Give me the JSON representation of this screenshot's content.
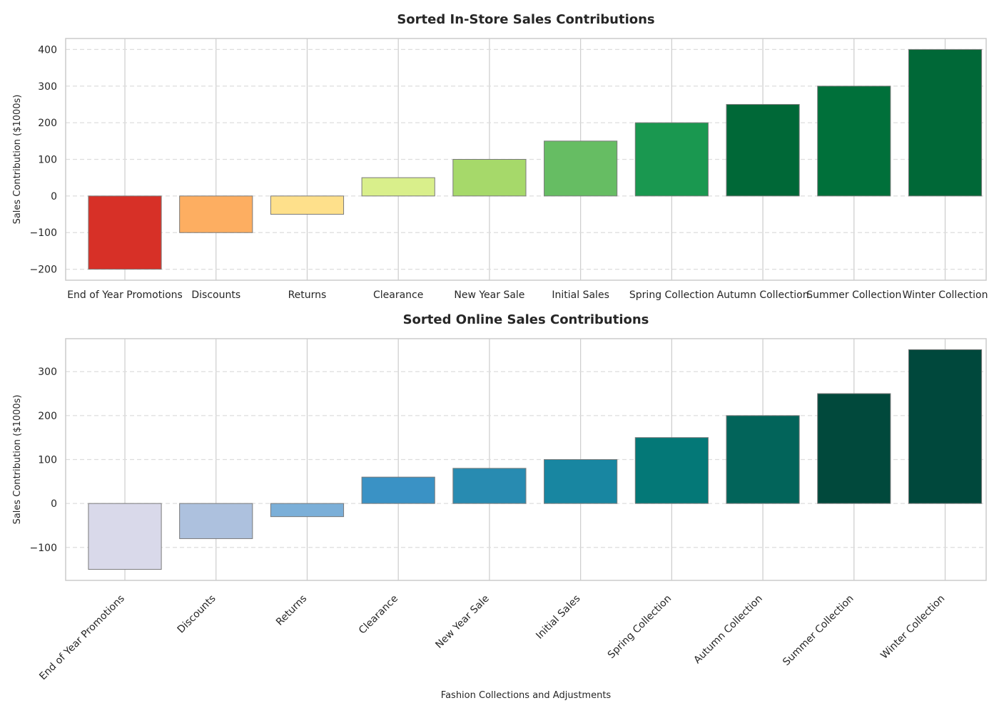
{
  "chart_data": [
    {
      "type": "bar",
      "title": "Sorted In-Store Sales Contributions",
      "xlabel": "",
      "ylabel": "Sales Contribution ($1000s)",
      "categories": [
        "End of Year Promotions",
        "Discounts",
        "Returns",
        "Clearance",
        "New Year Sale",
        "Initial Sales",
        "Spring Collection",
        "Autumn Collection",
        "Summer Collection",
        "Winter Collection"
      ],
      "values": [
        -200,
        -100,
        -50,
        50,
        100,
        150,
        200,
        250,
        300,
        400
      ],
      "colors": [
        "#d73027",
        "#fdae61",
        "#fee08b",
        "#d9ef8b",
        "#a6d96a",
        "#66bd63",
        "#1a9850",
        "#006837",
        "#00703a",
        "#006837"
      ],
      "ylim": [
        -230,
        430
      ],
      "yticks": [
        -200,
        -100,
        0,
        100,
        200,
        300,
        400
      ],
      "grid": true,
      "xtick_rotation": 0
    },
    {
      "type": "bar",
      "title": "Sorted Online Sales Contributions",
      "xlabel": "Fashion Collections and Adjustments",
      "ylabel": "Sales Contribution ($1000s)",
      "categories": [
        "End of Year Promotions",
        "Discounts",
        "Returns",
        "Clearance",
        "New Year Sale",
        "Initial Sales",
        "Spring Collection",
        "Autumn Collection",
        "Summer Collection",
        "Winter Collection"
      ],
      "values": [
        -150,
        -80,
        -30,
        60,
        80,
        100,
        150,
        200,
        250,
        350
      ],
      "colors": [
        "#d9d9ea",
        "#adc1de",
        "#7bafd8",
        "#3a92c5",
        "#288bb1",
        "#1886a1",
        "#047877",
        "#02645a",
        "#01493c",
        "#00483c"
      ],
      "ylim": [
        -175,
        375
      ],
      "yticks": [
        -100,
        0,
        100,
        200,
        300
      ],
      "grid": true,
      "xtick_rotation": -45
    }
  ]
}
